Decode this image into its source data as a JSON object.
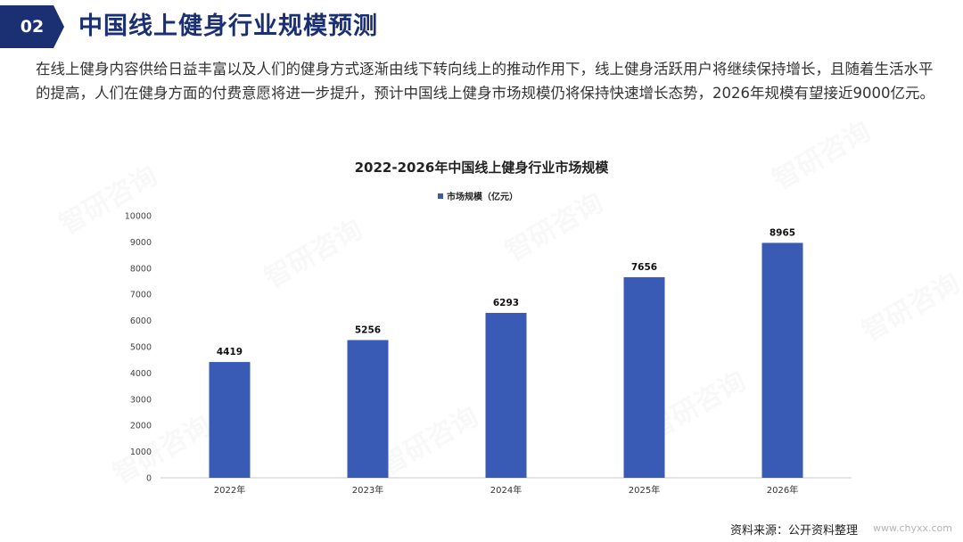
{
  "header": {
    "number": "02",
    "title": "中国线上健身行业规模预测"
  },
  "intro_text": "在线上健身内容供给日益丰富以及人们的健身方式逐渐由线下转向线上的推动作用下，线上健身活跃用户将继续保持增长，且随着生活水平的提高，人们在健身方面的付费意愿将进一步提升，预计中国线上健身市场规模仍将保持快速增长态势，2026年规模有望接近9000亿元。",
  "footer": {
    "source": "资料来源：公开资料整理",
    "site": "www.chyxx.com"
  },
  "watermark": "智研咨询",
  "colors": {
    "accent": "#1b2f73",
    "bar": "#3a5bb5"
  },
  "chart_data": {
    "type": "bar",
    "title": "2022-2026年中国线上健身行业市场规模",
    "categories": [
      "2022年",
      "2023年",
      "2024年",
      "2025年",
      "2026年"
    ],
    "series": [
      {
        "name": "市场规模（亿元）",
        "values": [
          4419,
          5256,
          6293,
          7656,
          8965
        ]
      }
    ],
    "ylim": [
      0,
      10000
    ],
    "yticks": [
      0,
      1000,
      2000,
      3000,
      4000,
      5000,
      6000,
      7000,
      8000,
      9000,
      10000
    ],
    "grid": false,
    "legend": "top-center"
  }
}
